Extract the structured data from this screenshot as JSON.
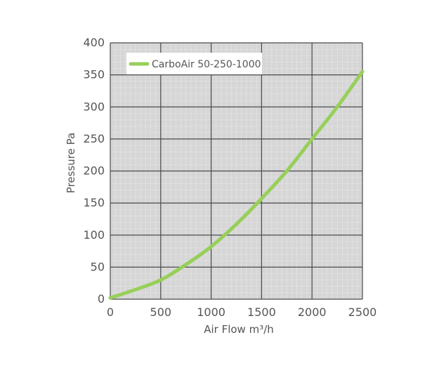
{
  "chart_data": {
    "type": "line",
    "xlabel": "Air Flow m³/h",
    "ylabel": "Pressure Pa",
    "xlim": [
      0,
      2500
    ],
    "ylim": [
      0,
      400
    ],
    "x_ticks": [
      0,
      500,
      1000,
      1500,
      2000,
      2500
    ],
    "y_ticks": [
      0,
      50,
      100,
      150,
      200,
      250,
      300,
      350,
      400
    ],
    "grid": true,
    "legend_position": "top-left",
    "colors": {
      "series": "#97cf5a",
      "plot_background": "#d6d6d6",
      "major_grid": "#4a4a4a",
      "minor_grid": "#ffffff",
      "text": "#555555"
    },
    "series": [
      {
        "name": "CarboAir 50-250-1000",
        "x": [
          0,
          250,
          500,
          750,
          1000,
          1250,
          1500,
          1750,
          2000,
          2250,
          2500
        ],
        "y": [
          2,
          15,
          30,
          54,
          82,
          117,
          157,
          200,
          250,
          300,
          355
        ]
      }
    ]
  }
}
